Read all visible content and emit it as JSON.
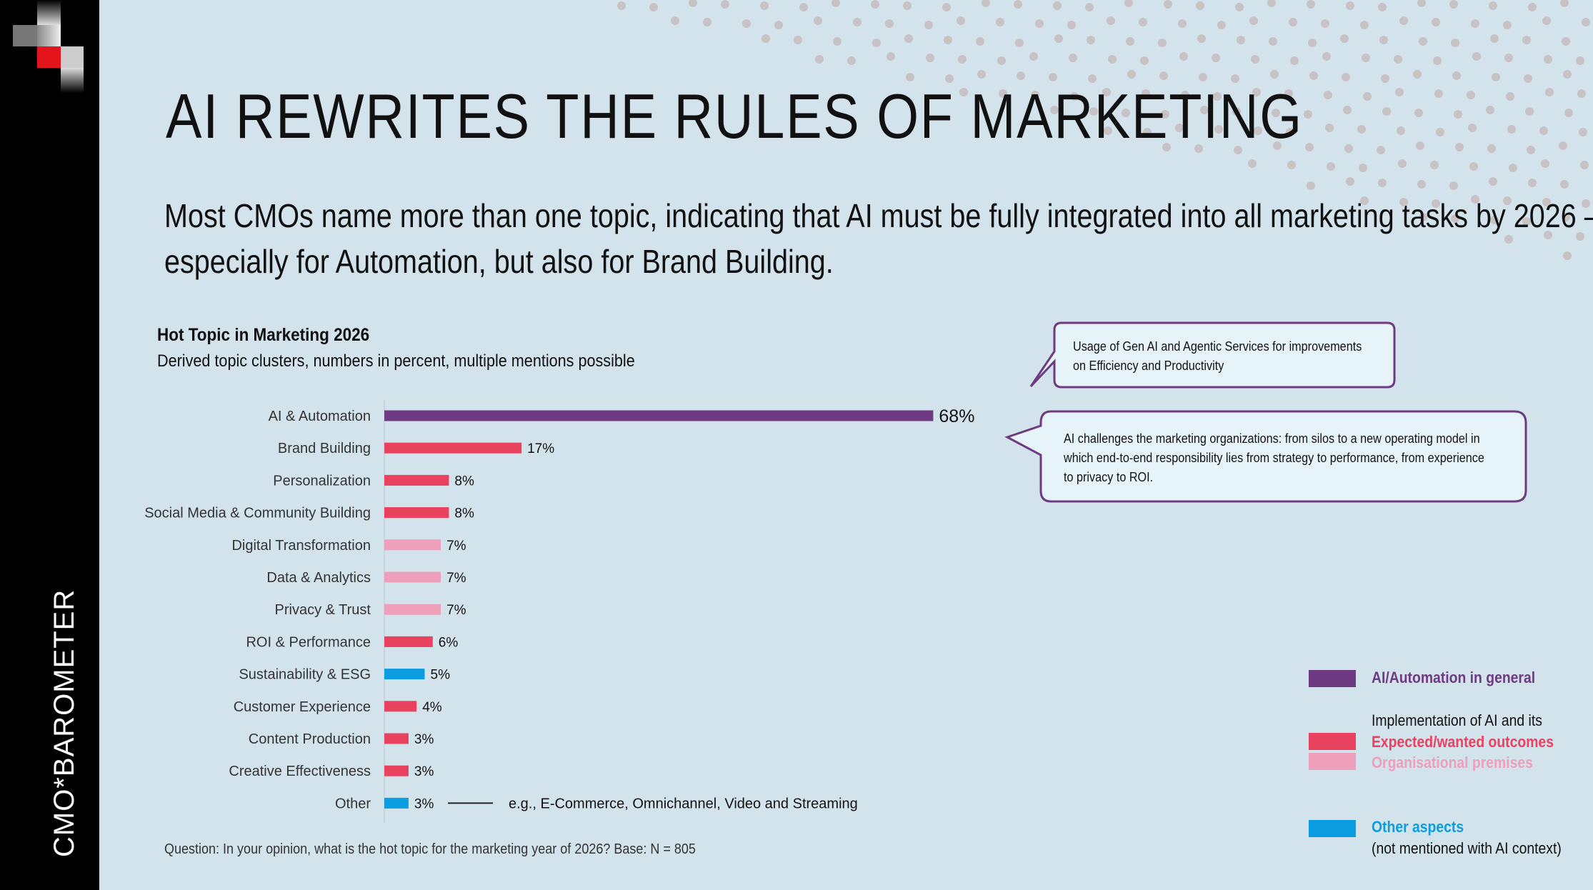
{
  "brand": "CMO*BAROMETER",
  "title": "AI REWRITES THE RULES OF MARKETING",
  "subtitle": "Most CMOs name more than one topic, indicating that AI must be fully integrated into all marketing tasks by 2026 – especially for Automation, but also for Brand Building.",
  "callouts": {
    "top": "Usage of Gen AI and Agentic Services for improvements on Efficiency and Productivity",
    "bottom": "AI challenges the marketing organizations: from silos to a new operating model in which end-to-end responsibility lies from strategy to performance, from experience to privacy to ROI."
  },
  "other_note": "e.g., E-Commerce, Omnichannel, Video and Streaming",
  "question": "Question: In your opinion, what is the hot topic for the marketing year of 2026? Base: N = 805",
  "legend": {
    "ai": "AI/Automation in general",
    "impl_header": "Implementation of AI and its",
    "expected": "Expected/wanted outcomes",
    "premises": "Organisational premises",
    "other": "Other aspects",
    "other_sub": "(not mentioned with AI context)"
  },
  "colors": {
    "ai": "#6e3a82",
    "expected": "#e8425e",
    "premises": "#eea0bb",
    "other": "#0b9de0"
  },
  "chart_data": {
    "type": "bar",
    "orientation": "horizontal",
    "title": "Hot Topic in Marketing 2026",
    "subtitle": "Derived topic clusters, numbers in percent, multiple mentions possible",
    "categories": [
      "AI & Automation",
      "Brand Building",
      "Personalization",
      "Social Media & Community Building",
      "Digital Transformation",
      "Data & Analytics",
      "Privacy & Trust",
      "ROI & Performance",
      "Sustainability & ESG",
      "Customer Experience",
      "Content Production",
      "Creative Effectiveness",
      "Other"
    ],
    "values": [
      68,
      17,
      8,
      8,
      7,
      7,
      7,
      6,
      5,
      4,
      3,
      3,
      3
    ],
    "labels": [
      "68%",
      "17%",
      "8%",
      "8%",
      "7%",
      "7%",
      "7%",
      "6%",
      "5%",
      "4%",
      "3%",
      "3%",
      "3%"
    ],
    "groups": [
      "ai",
      "expected",
      "expected",
      "expected",
      "premises",
      "premises",
      "premises",
      "expected",
      "other",
      "expected",
      "expected",
      "expected",
      "other"
    ],
    "unit": "%"
  }
}
